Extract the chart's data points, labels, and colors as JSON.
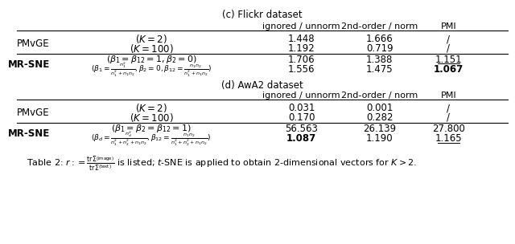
{
  "title_c": "(c) Flickr dataset",
  "title_d": "(d) AwA2 dataset",
  "col_headers": [
    "ignored / unnorm",
    "2nd-order / norm",
    "PMI"
  ],
  "flickr_rows": [
    {
      "method": "PMvGE",
      "method_bold": false,
      "param": "$(K = 2)$",
      "param_small": false,
      "v1": "1.448",
      "v2": "1.666",
      "v3": "/",
      "bold_v1": false,
      "bold_v2": false,
      "bold_v3": false,
      "underline_v3": false
    },
    {
      "method": "",
      "method_bold": false,
      "param": "$(K = 100)$",
      "param_small": false,
      "v1": "1.192",
      "v2": "0.719",
      "v3": "/",
      "bold_v1": false,
      "bold_v2": false,
      "bold_v3": false,
      "underline_v3": false
    },
    {
      "method": "MR-SNE",
      "method_bold": true,
      "param": "$(\\beta_1 = \\beta_{12} = 1, \\beta_2 = 0)$",
      "param_small": false,
      "v1": "1.706",
      "v2": "1.388",
      "v3": "1.151",
      "bold_v1": false,
      "bold_v2": false,
      "bold_v3": false,
      "underline_v3": true
    },
    {
      "method": "",
      "method_bold": false,
      "param": "$(\\beta_1 = \\frac{n_1^2}{n_1^2+n_1 n_2}, \\beta_2 = 0, \\beta_{12} = \\frac{n_1 n_2}{n_1^2+n_1 n_2})$",
      "param_small": true,
      "v1": "1.556",
      "v2": "1.475",
      "v3": "1.067",
      "bold_v1": false,
      "bold_v2": false,
      "bold_v3": true,
      "underline_v3": false
    }
  ],
  "awa2_rows": [
    {
      "method": "PMvGE",
      "method_bold": false,
      "param": "$(K = 2)$",
      "param_small": false,
      "v1": "0.031",
      "v2": "0.001",
      "v3": "/",
      "bold_v1": false,
      "bold_v2": false,
      "bold_v3": false,
      "underline_v3": false
    },
    {
      "method": "",
      "method_bold": false,
      "param": "$(K = 100)$",
      "param_small": false,
      "v1": "0.170",
      "v2": "0.282",
      "v3": "/",
      "bold_v1": false,
      "bold_v2": false,
      "bold_v3": false,
      "underline_v3": false
    },
    {
      "method": "MR-SNE",
      "method_bold": true,
      "param": "$(\\beta_1 = \\beta_2 = \\beta_{12} = 1)$",
      "param_small": false,
      "v1": "56.563",
      "v2": "26.139",
      "v3": "27.800",
      "bold_v1": false,
      "bold_v2": false,
      "bold_v3": false,
      "underline_v3": false
    },
    {
      "method": "",
      "method_bold": false,
      "param": "$(\\beta_d = \\frac{n_d^2}{n_1^2+n_2^2+n_1 n_2}, \\beta_{12} = \\frac{n_1 n_2}{n_1^2+n_2^2+n_1 n_2})$",
      "param_small": true,
      "v1": "1.087",
      "v2": "1.190",
      "v3": "1.165",
      "bold_v1": true,
      "bold_v2": false,
      "bold_v3": false,
      "underline_v3": true
    }
  ],
  "caption": "Table 2: $r := \\frac{\\mathrm{tr}\\Sigma^{(\\mathrm{image})}}{\\mathrm{tr}\\Sigma^{(\\mathrm{text})}}$ is listed; $t$-SNE is applied to obtain 2-dimensional vectors for $K > 2$.",
  "background": "#ffffff"
}
